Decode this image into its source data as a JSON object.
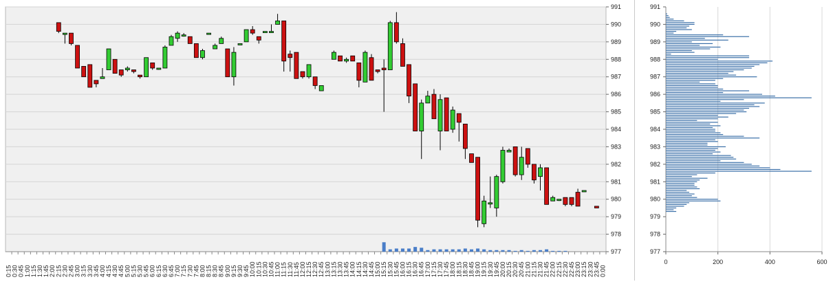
{
  "chart_data": [
    {
      "type": "candlestick",
      "title": "",
      "xlabel": "",
      "ylabel": "",
      "ylim": [
        977,
        991
      ],
      "yticks": [
        "977",
        "978",
        "979",
        "980",
        "981",
        "982",
        "983",
        "984",
        "985",
        "986",
        "987",
        "988",
        "989",
        "990",
        "991"
      ],
      "y_axis_side": "right",
      "grid": "horizontal",
      "background": "#f0f0f0",
      "colors": {
        "up": "#33cc33",
        "down": "#cc1111",
        "volume": "#4a7ec8"
      },
      "x_labels": [
        "0:15",
        "0:30",
        "0:45",
        "1:00",
        "1:15",
        "1:30",
        "1:45",
        "2:00",
        "2:15",
        "2:30",
        "2:45",
        "3:00",
        "3:15",
        "3:30",
        "3:45",
        "4:00",
        "4:15",
        "4:30",
        "4:45",
        "5:00",
        "5:15",
        "5:30",
        "5:45",
        "6:00",
        "6:15",
        "6:30",
        "6:45",
        "7:00",
        "7:15",
        "7:30",
        "7:45",
        "8:00",
        "8:15",
        "8:30",
        "8:45",
        "9:00",
        "9:15",
        "9:30",
        "9:45",
        "10:00",
        "10:15",
        "10:30",
        "10:45",
        "11:00",
        "11:15",
        "11:30",
        "11:45",
        "12:00",
        "12:15",
        "12:30",
        "12:45",
        "13:00",
        "13:15",
        "13:30",
        "13:45",
        "14:00",
        "14:15",
        "14:30",
        "14:45",
        "15:00",
        "15:15",
        "15:30",
        "15:45",
        "16:00",
        "16:15",
        "16:30",
        "16:45",
        "17:00",
        "17:15",
        "17:30",
        "17:45",
        "18:00",
        "18:15",
        "18:30",
        "18:45",
        "19:00",
        "19:15",
        "19:30",
        "19:45",
        "20:00",
        "20:15",
        "20:30",
        "20:45",
        "21:00",
        "21:15",
        "21:30",
        "21:45",
        "22:00",
        "22:15",
        "22:30",
        "22:45",
        "23:00",
        "23:15",
        "23:30",
        "23:45",
        "0:00"
      ],
      "candles": [
        {
          "i": 8,
          "o": 990.1,
          "h": 990.1,
          "l": 989.5,
          "c": 989.6
        },
        {
          "i": 9,
          "o": 989.5,
          "h": 989.5,
          "l": 988.9,
          "c": 989.5
        },
        {
          "i": 10,
          "o": 989.5,
          "h": 989.5,
          "l": 988.8,
          "c": 988.9
        },
        {
          "i": 11,
          "o": 988.8,
          "h": 988.8,
          "l": 987.5,
          "c": 987.5
        },
        {
          "i": 12,
          "o": 987.6,
          "h": 987.6,
          "l": 987.0,
          "c": 987.0
        },
        {
          "i": 13,
          "o": 987.7,
          "h": 987.7,
          "l": 986.4,
          "c": 986.4
        },
        {
          "i": 14,
          "o": 986.8,
          "h": 986.8,
          "l": 986.4,
          "c": 986.6
        },
        {
          "i": 15,
          "o": 986.9,
          "h": 987.5,
          "l": 986.9,
          "c": 987.0
        },
        {
          "i": 16,
          "o": 987.4,
          "h": 988.6,
          "l": 987.4,
          "c": 988.6
        },
        {
          "i": 17,
          "o": 988.0,
          "h": 988.0,
          "l": 987.2,
          "c": 987.2
        },
        {
          "i": 18,
          "o": 987.4,
          "h": 987.4,
          "l": 987.0,
          "c": 987.1
        },
        {
          "i": 19,
          "o": 987.4,
          "h": 987.6,
          "l": 987.3,
          "c": 987.5
        },
        {
          "i": 20,
          "o": 987.4,
          "h": 987.4,
          "l": 987.2,
          "c": 987.3
        },
        {
          "i": 21,
          "o": 987.1,
          "h": 987.1,
          "l": 986.9,
          "c": 987.0
        },
        {
          "i": 22,
          "o": 987.0,
          "h": 988.1,
          "l": 987.0,
          "c": 988.1
        },
        {
          "i": 23,
          "o": 987.8,
          "h": 987.8,
          "l": 987.4,
          "c": 987.5
        },
        {
          "i": 24,
          "o": 987.5,
          "h": 987.5,
          "l": 987.4,
          "c": 987.5
        },
        {
          "i": 25,
          "o": 987.5,
          "h": 988.8,
          "l": 987.5,
          "c": 988.7
        },
        {
          "i": 26,
          "o": 988.8,
          "h": 989.4,
          "l": 988.8,
          "c": 989.3
        },
        {
          "i": 27,
          "o": 989.2,
          "h": 989.6,
          "l": 989.0,
          "c": 989.5
        },
        {
          "i": 28,
          "o": 989.4,
          "h": 989.5,
          "l": 989.3,
          "c": 989.4
        },
        {
          "i": 29,
          "o": 989.3,
          "h": 989.3,
          "l": 988.9,
          "c": 988.9
        },
        {
          "i": 30,
          "o": 988.9,
          "h": 988.9,
          "l": 988.1,
          "c": 988.1
        },
        {
          "i": 31,
          "o": 988.1,
          "h": 988.6,
          "l": 988.0,
          "c": 988.5
        },
        {
          "i": 32,
          "o": 989.5,
          "h": 989.5,
          "l": 989.5,
          "c": 989.5
        },
        {
          "i": 33,
          "o": 988.6,
          "h": 988.9,
          "l": 988.6,
          "c": 988.8
        },
        {
          "i": 34,
          "o": 988.9,
          "h": 989.3,
          "l": 988.9,
          "c": 989.2
        },
        {
          "i": 35,
          "o": 988.6,
          "h": 988.6,
          "l": 987.0,
          "c": 987.0
        },
        {
          "i": 36,
          "o": 987.0,
          "h": 988.7,
          "l": 986.5,
          "c": 988.4
        },
        {
          "i": 37,
          "o": 988.9,
          "h": 988.9,
          "l": 988.9,
          "c": 988.9
        },
        {
          "i": 38,
          "o": 989.0,
          "h": 989.7,
          "l": 989.0,
          "c": 989.7
        },
        {
          "i": 39,
          "o": 989.7,
          "h": 989.9,
          "l": 989.4,
          "c": 989.5
        },
        {
          "i": 40,
          "o": 989.3,
          "h": 989.3,
          "l": 988.9,
          "c": 989.1
        },
        {
          "i": 41,
          "o": 989.6,
          "h": 989.6,
          "l": 989.6,
          "c": 989.6
        },
        {
          "i": 42,
          "o": 989.6,
          "h": 990.0,
          "l": 989.6,
          "c": 989.6
        },
        {
          "i": 43,
          "o": 990.0,
          "h": 990.6,
          "l": 990.0,
          "c": 990.2
        },
        {
          "i": 44,
          "o": 990.2,
          "h": 990.2,
          "l": 987.3,
          "c": 987.9
        },
        {
          "i": 45,
          "o": 988.3,
          "h": 988.5,
          "l": 987.3,
          "c": 988.1
        },
        {
          "i": 46,
          "o": 988.4,
          "h": 988.4,
          "l": 986.9,
          "c": 986.9
        },
        {
          "i": 47,
          "o": 987.3,
          "h": 987.3,
          "l": 986.9,
          "c": 987.0
        },
        {
          "i": 48,
          "o": 987.0,
          "h": 987.7,
          "l": 986.9,
          "c": 987.7
        },
        {
          "i": 49,
          "o": 987.0,
          "h": 987.0,
          "l": 986.3,
          "c": 986.5
        },
        {
          "i": 50,
          "o": 986.2,
          "h": 986.5,
          "l": 986.2,
          "c": 986.5
        },
        {
          "i": 52,
          "o": 988.0,
          "h": 988.5,
          "l": 988.0,
          "c": 988.4
        },
        {
          "i": 53,
          "o": 988.2,
          "h": 988.2,
          "l": 987.9,
          "c": 987.9
        },
        {
          "i": 54,
          "o": 987.9,
          "h": 988.1,
          "l": 987.8,
          "c": 988.0
        },
        {
          "i": 55,
          "o": 988.2,
          "h": 988.2,
          "l": 987.9,
          "c": 987.9
        },
        {
          "i": 56,
          "o": 987.8,
          "h": 987.8,
          "l": 986.4,
          "c": 986.8
        },
        {
          "i": 57,
          "o": 986.7,
          "h": 988.5,
          "l": 986.7,
          "c": 988.4
        },
        {
          "i": 58,
          "o": 988.1,
          "h": 988.3,
          "l": 986.8,
          "c": 986.8
        },
        {
          "i": 59,
          "o": 987.4,
          "h": 987.4,
          "l": 987.2,
          "c": 987.3
        },
        {
          "i": 60,
          "o": 987.5,
          "h": 988.0,
          "l": 985.0,
          "c": 987.4
        },
        {
          "i": 61,
          "o": 987.4,
          "h": 990.2,
          "l": 987.4,
          "c": 990.1
        },
        {
          "i": 62,
          "o": 990.1,
          "h": 990.7,
          "l": 988.9,
          "c": 989.0
        },
        {
          "i": 63,
          "o": 988.9,
          "h": 989.2,
          "l": 987.6,
          "c": 987.6
        },
        {
          "i": 64,
          "o": 987.7,
          "h": 987.7,
          "l": 985.5,
          "c": 985.9
        },
        {
          "i": 65,
          "o": 986.6,
          "h": 986.6,
          "l": 983.9,
          "c": 983.9
        },
        {
          "i": 66,
          "o": 983.9,
          "h": 985.7,
          "l": 982.3,
          "c": 985.5
        },
        {
          "i": 67,
          "o": 985.5,
          "h": 986.2,
          "l": 985.5,
          "c": 985.9
        },
        {
          "i": 68,
          "o": 986.0,
          "h": 986.3,
          "l": 984.6,
          "c": 984.6
        },
        {
          "i": 69,
          "o": 983.9,
          "h": 986.0,
          "l": 982.8,
          "c": 985.7
        },
        {
          "i": 70,
          "o": 985.8,
          "h": 985.8,
          "l": 983.9,
          "c": 983.9
        },
        {
          "i": 71,
          "o": 984.0,
          "h": 985.3,
          "l": 983.8,
          "c": 985.1
        },
        {
          "i": 72,
          "o": 984.9,
          "h": 984.9,
          "l": 983.3,
          "c": 984.4
        },
        {
          "i": 73,
          "o": 984.3,
          "h": 984.3,
          "l": 982.3,
          "c": 982.9
        },
        {
          "i": 74,
          "o": 982.6,
          "h": 982.6,
          "l": 982.1,
          "c": 982.1
        },
        {
          "i": 75,
          "o": 982.4,
          "h": 982.4,
          "l": 978.4,
          "c": 978.8
        },
        {
          "i": 76,
          "o": 978.6,
          "h": 980.2,
          "l": 978.4,
          "c": 979.9
        },
        {
          "i": 77,
          "o": 979.8,
          "h": 981.3,
          "l": 979.5,
          "c": 979.8
        },
        {
          "i": 78,
          "o": 979.5,
          "h": 981.4,
          "l": 979.0,
          "c": 981.3
        },
        {
          "i": 79,
          "o": 981.0,
          "h": 983.0,
          "l": 980.9,
          "c": 982.8
        },
        {
          "i": 80,
          "o": 982.7,
          "h": 982.9,
          "l": 982.7,
          "c": 982.8
        },
        {
          "i": 81,
          "o": 983.0,
          "h": 983.0,
          "l": 981.3,
          "c": 981.4
        },
        {
          "i": 82,
          "o": 981.4,
          "h": 983.0,
          "l": 981.1,
          "c": 982.4
        },
        {
          "i": 83,
          "o": 982.9,
          "h": 982.9,
          "l": 981.8,
          "c": 982.0
        },
        {
          "i": 84,
          "o": 982.0,
          "h": 982.0,
          "l": 980.9,
          "c": 981.1
        },
        {
          "i": 85,
          "o": 981.3,
          "h": 982.0,
          "l": 980.5,
          "c": 981.8
        },
        {
          "i": 86,
          "o": 981.8,
          "h": 981.8,
          "l": 979.7,
          "c": 979.7
        },
        {
          "i": 87,
          "o": 979.9,
          "h": 980.2,
          "l": 979.9,
          "c": 980.1
        },
        {
          "i": 88,
          "o": 980.0,
          "h": 980.0,
          "l": 979.9,
          "c": 980.0
        },
        {
          "i": 89,
          "o": 980.1,
          "h": 980.1,
          "l": 979.6,
          "c": 979.7
        },
        {
          "i": 90,
          "o": 980.1,
          "h": 980.1,
          "l": 979.6,
          "c": 979.7
        },
        {
          "i": 91,
          "o": 980.4,
          "h": 980.6,
          "l": 979.6,
          "c": 979.6
        },
        {
          "i": 92,
          "o": 980.5,
          "h": 980.5,
          "l": 980.5,
          "c": 980.5
        },
        {
          "i": 94,
          "o": 979.6,
          "h": 979.6,
          "l": 979.5,
          "c": 979.5
        }
      ],
      "volume": [
        {
          "i": 60,
          "v": 12
        },
        {
          "i": 61,
          "v": 3
        },
        {
          "i": 62,
          "v": 4
        },
        {
          "i": 63,
          "v": 4
        },
        {
          "i": 64,
          "v": 4
        },
        {
          "i": 65,
          "v": 6
        },
        {
          "i": 66,
          "v": 5
        },
        {
          "i": 67,
          "v": 2
        },
        {
          "i": 68,
          "v": 3
        },
        {
          "i": 69,
          "v": 3
        },
        {
          "i": 70,
          "v": 3
        },
        {
          "i": 71,
          "v": 3
        },
        {
          "i": 72,
          "v": 3
        },
        {
          "i": 73,
          "v": 4
        },
        {
          "i": 74,
          "v": 3
        },
        {
          "i": 75,
          "v": 4
        },
        {
          "i": 76,
          "v": 3
        },
        {
          "i": 77,
          "v": 2
        },
        {
          "i": 78,
          "v": 2
        },
        {
          "i": 79,
          "v": 2
        },
        {
          "i": 80,
          "v": 2
        },
        {
          "i": 81,
          "v": 1
        },
        {
          "i": 82,
          "v": 2
        },
        {
          "i": 83,
          "v": 1
        },
        {
          "i": 84,
          "v": 2
        },
        {
          "i": 85,
          "v": 2
        },
        {
          "i": 86,
          "v": 3
        },
        {
          "i": 87,
          "v": 1
        },
        {
          "i": 88,
          "v": 1
        },
        {
          "i": 89,
          "v": 1
        }
      ]
    },
    {
      "type": "bar",
      "orientation": "horizontal",
      "title": "",
      "xlabel": "",
      "ylabel": "",
      "xlim": [
        0,
        600
      ],
      "xticks": [
        "0",
        "200",
        "400",
        "600"
      ],
      "ylim": [
        977,
        991
      ],
      "yticks": [
        "977",
        "978",
        "979",
        "980",
        "981",
        "982",
        "983",
        "984",
        "985",
        "986",
        "987",
        "988",
        "989",
        "990",
        "991"
      ],
      "bar_color": "#3a6fa8",
      "price_step": 0.1,
      "price_start": 990.6,
      "values": [
        5,
        10,
        15,
        30,
        70,
        110,
        110,
        90,
        80,
        100,
        40,
        30,
        220,
        320,
        150,
        240,
        100,
        180,
        130,
        210,
        170,
        100,
        110,
        20,
        320,
        320,
        200,
        410,
        390,
        360,
        340,
        330,
        300,
        260,
        240,
        270,
        350,
        220,
        190,
        130,
        190,
        200,
        200,
        220,
        320,
        220,
        370,
        420,
        560,
        300,
        210,
        380,
        340,
        360,
        320,
        300,
        310,
        270,
        200,
        240,
        200,
        120,
        200,
        170,
        210,
        180,
        190,
        190,
        210,
        220,
        300,
        360,
        190,
        200,
        160,
        160,
        230,
        200,
        190,
        210,
        180,
        250,
        260,
        270,
        210,
        300,
        330,
        360,
        400,
        440,
        560,
        190,
        120,
        100,
        160,
        130,
        120,
        110,
        110,
        120,
        130,
        80,
        90,
        110,
        100,
        120,
        200,
        210,
        90,
        80,
        70,
        40,
        30,
        40
      ]
    }
  ]
}
